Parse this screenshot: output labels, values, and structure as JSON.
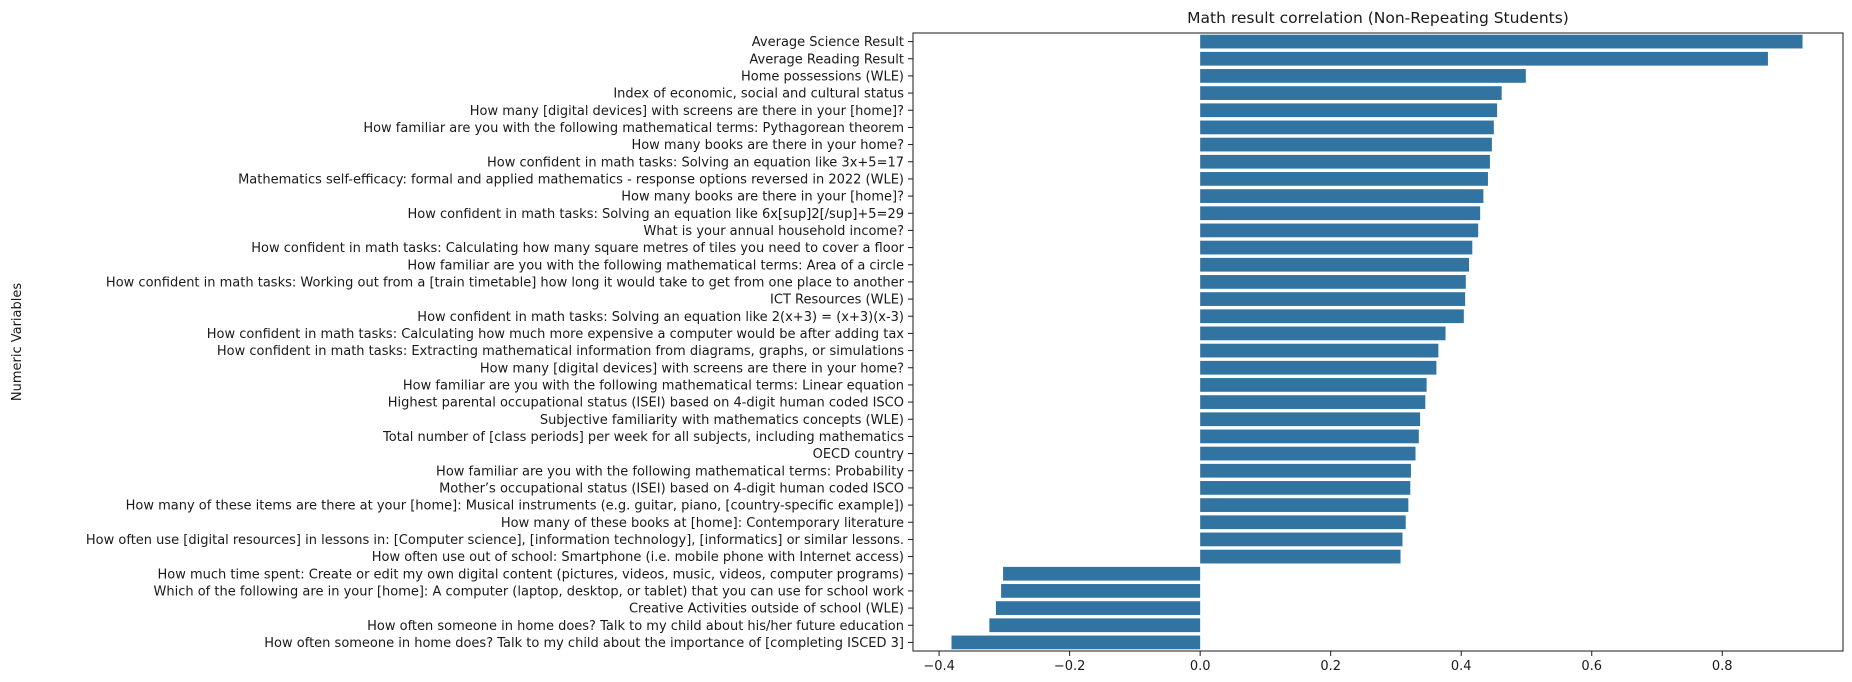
{
  "chart_data": {
    "type": "bar",
    "orientation": "horizontal",
    "title": "Math result correlation (Non-Repeating Students)",
    "xlabel": "",
    "ylabel": "Numeric Variables",
    "xlim": [
      -0.44,
      0.985
    ],
    "xticks": [
      -0.4,
      -0.2,
      0.0,
      0.2,
      0.4,
      0.6,
      0.8
    ],
    "xtick_labels": [
      "−0.4",
      "−0.2",
      "0.0",
      "0.2",
      "0.4",
      "0.6",
      "0.8"
    ],
    "bar_color": "#3274a1",
    "grid": false,
    "categories": [
      "Average Science Result",
      "Average Reading Result",
      "Home possessions (WLE)",
      "Index of economic, social and cultural status",
      "How many [digital devices] with screens are there in your [home]?",
      "How familiar are you with the following mathematical terms: Pythagorean theorem",
      "How many books are there in your home?",
      "How confident in math tasks: Solving an equation like 3x+5=17",
      "Mathematics self-efficacy: formal and applied mathematics - response options reversed in 2022 (WLE)",
      "How many books are there in your [home]?",
      "How confident in math tasks: Solving an equation like 6x[sup]2[/sup]+5=29",
      "What is your annual household income?",
      "How confident in math tasks: Calculating how many square metres of tiles you need to cover a floor",
      "How familiar are you with the following mathematical terms: Area of a circle",
      "How confident in math tasks: Working out from a [train timetable] how long it would take to get from one place to another",
      "ICT Resources (WLE)",
      "How confident in math tasks: Solving an equation like 2(x+3) = (x+3)(x-3)",
      "How confident in math tasks: Calculating how much more expensive a computer would be after adding tax",
      "How confident in math tasks: Extracting mathematical information from diagrams, graphs, or simulations",
      "How many [digital devices] with screens are there in your home?",
      "How familiar are you with the following mathematical terms: Linear equation",
      "Highest parental occupational status (ISEI) based on 4-digit human coded ISCO",
      "Subjective familiarity with mathematics concepts (WLE)",
      "Total number of [class periods] per week for all subjects, including mathematics",
      "OECD country",
      "How familiar are you with the following mathematical terms: Probability",
      "Mother’s occupational status (ISEI) based on 4-digit human coded ISCO",
      "How many of these items are there at your [home]: Musical instruments (e.g. guitar, piano, [country-specific example])",
      "How many of these books at [home]: Contemporary literature",
      "How often use [digital resources] in lessons in: [Computer science], [information technology], [informatics] or similar lessons.",
      "How often use out of school: Smartphone (i.e. mobile phone with Internet access)",
      "How much time spent: Create or edit my own digital content (pictures, videos, music, videos, computer programs)",
      "Which of the following are in your [home]: A computer (laptop, desktop, or tablet) that you can use for school work",
      "Creative Activities outside of school (WLE)",
      "How often someone in home does? Talk to my child about his/her future education",
      "How often someone in home does? Talk to my child about the importance of [completing ISCED 3]"
    ],
    "values": [
      0.923,
      0.87,
      0.499,
      0.462,
      0.455,
      0.45,
      0.447,
      0.444,
      0.441,
      0.434,
      0.429,
      0.426,
      0.417,
      0.412,
      0.407,
      0.406,
      0.404,
      0.376,
      0.365,
      0.362,
      0.347,
      0.345,
      0.337,
      0.335,
      0.33,
      0.323,
      0.322,
      0.319,
      0.315,
      0.31,
      0.307,
      -0.302,
      -0.305,
      -0.313,
      -0.323,
      -0.381
    ]
  }
}
